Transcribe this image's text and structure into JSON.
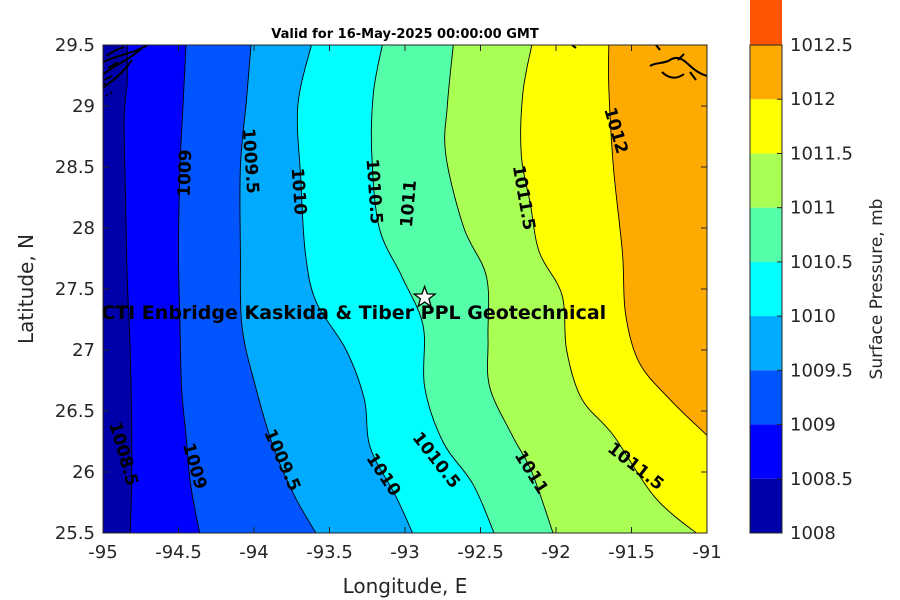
{
  "chart_data": {
    "type": "contour",
    "title": "Valid for 16-May-2025 00:00:00 GMT",
    "xlabel": "Longitude, E",
    "ylabel": "Latitude, N",
    "xlim": [
      -95,
      -91
    ],
    "ylim": [
      25.5,
      29.5
    ],
    "xticks": [
      "-95",
      "-94.5",
      "-94",
      "-93.5",
      "-93",
      "-92.5",
      "-92",
      "-91.5",
      "-91"
    ],
    "yticks": [
      "25.5",
      "26",
      "26.5",
      "27",
      "27.5",
      "28",
      "28.5",
      "29",
      "29.5"
    ],
    "colorbar": {
      "label": "Surface Pressure, mb",
      "ticks": [
        "1008",
        "1008.5",
        "1009",
        "1009.5",
        "1010",
        "1010.5",
        "1011",
        "1011.5",
        "1012",
        "1012.5"
      ],
      "levels": [
        1008,
        1008.5,
        1009,
        1009.5,
        1010,
        1010.5,
        1011,
        1011.5,
        1012,
        1012.5
      ],
      "colors": [
        "#0000AA",
        "#0000FF",
        "#0055FF",
        "#00AAFF",
        "#00FFFF",
        "#55FFAA",
        "#AAFF55",
        "#FFFF00",
        "#FFAA00",
        "#FF5500"
      ]
    },
    "isobars": [
      {
        "level": 1008.5,
        "points": [
          [
            -94.84,
            29.5
          ],
          [
            -94.84,
            29.2
          ],
          [
            -94.86,
            28.9
          ],
          [
            -94.85,
            28.2
          ],
          [
            -94.84,
            27.6
          ],
          [
            -94.82,
            27.0
          ],
          [
            -94.81,
            26.4
          ],
          [
            -94.81,
            25.9
          ],
          [
            -94.82,
            25.5
          ]
        ]
      },
      {
        "level": 1009,
        "points": [
          [
            -94.45,
            29.5
          ],
          [
            -94.47,
            29.0
          ],
          [
            -94.49,
            28.5
          ],
          [
            -94.5,
            27.8
          ],
          [
            -94.49,
            27.2
          ],
          [
            -94.48,
            26.7
          ],
          [
            -94.45,
            26.3
          ],
          [
            -94.42,
            25.9
          ],
          [
            -94.36,
            25.5
          ]
        ]
      },
      {
        "level": 1009.5,
        "points": [
          [
            -94.02,
            29.5
          ],
          [
            -94.05,
            29.05
          ],
          [
            -94.09,
            28.5
          ],
          [
            -94.09,
            27.8
          ],
          [
            -94.08,
            27.2
          ],
          [
            -93.99,
            26.7
          ],
          [
            -93.87,
            26.2
          ],
          [
            -93.73,
            25.8
          ],
          [
            -93.59,
            25.5
          ]
        ]
      },
      {
        "level": 1010,
        "points": [
          [
            -93.62,
            29.5
          ],
          [
            -93.71,
            29.0
          ],
          [
            -93.69,
            28.4
          ],
          [
            -93.66,
            27.8
          ],
          [
            -93.59,
            27.4
          ],
          [
            -93.39,
            27.0
          ],
          [
            -93.27,
            26.6
          ],
          [
            -93.23,
            26.2
          ],
          [
            -93.06,
            25.8
          ],
          [
            -92.95,
            25.5
          ]
        ]
      },
      {
        "level": 1010.5,
        "points": [
          [
            -93.15,
            29.5
          ],
          [
            -93.21,
            29.1
          ],
          [
            -93.22,
            28.6
          ],
          [
            -93.17,
            28.0
          ],
          [
            -93.02,
            27.6
          ],
          [
            -92.88,
            27.2
          ],
          [
            -92.87,
            26.7
          ],
          [
            -92.75,
            26.25
          ],
          [
            -92.55,
            25.9
          ],
          [
            -92.41,
            25.5
          ]
        ]
      },
      {
        "level": 1011,
        "points": [
          [
            -92.68,
            29.5
          ],
          [
            -92.72,
            29.0
          ],
          [
            -92.73,
            28.6
          ],
          [
            -92.61,
            28.0
          ],
          [
            -92.46,
            27.6
          ],
          [
            -92.45,
            27.1
          ],
          [
            -92.44,
            26.7
          ],
          [
            -92.29,
            26.3
          ],
          [
            -92.16,
            26.0
          ],
          [
            -92.02,
            25.5
          ]
        ]
      },
      {
        "level": 1011.5,
        "points": [
          [
            -92.16,
            29.5
          ],
          [
            -92.22,
            29.1
          ],
          [
            -92.23,
            28.6
          ],
          [
            -92.17,
            28.2
          ],
          [
            -92.11,
            27.8
          ],
          [
            -91.96,
            27.45
          ],
          [
            -91.93,
            27.0
          ],
          [
            -91.83,
            26.6
          ],
          [
            -91.62,
            26.3
          ],
          [
            -91.35,
            25.8
          ],
          [
            -91.07,
            25.5
          ],
          [
            -91,
            25.47
          ]
        ]
      },
      {
        "level": 1012,
        "points": [
          [
            -91.65,
            29.5
          ],
          [
            -91.65,
            29.15
          ],
          [
            -91.62,
            28.5
          ],
          [
            -91.56,
            27.8
          ],
          [
            -91.54,
            27.3
          ],
          [
            -91.45,
            26.9
          ],
          [
            -91.25,
            26.6
          ],
          [
            -91,
            26.3
          ]
        ]
      }
    ],
    "contour_labels": [
      {
        "text": "1008.5",
        "x": -94.86,
        "y": 26.15,
        "angle": 74
      },
      {
        "text": "1009",
        "x": -94.39,
        "y": 26.05,
        "angle": 74
      },
      {
        "text": "1009",
        "x": -94.46,
        "y": 28.45,
        "angle": -88
      },
      {
        "text": "1009.5",
        "x": -94.02,
        "y": 28.55,
        "angle": 86
      },
      {
        "text": "1009.5",
        "x": -93.81,
        "y": 26.1,
        "angle": 66
      },
      {
        "text": "1010",
        "x": -93.7,
        "y": 28.3,
        "angle": 86
      },
      {
        "text": "1010",
        "x": -93.14,
        "y": 25.98,
        "angle": 56
      },
      {
        "text": "1010.5",
        "x": -93.2,
        "y": 28.3,
        "angle": 86
      },
      {
        "text": "1010.5",
        "x": -92.79,
        "y": 26.1,
        "angle": 52
      },
      {
        "text": "1011",
        "x": -92.98,
        "y": 28.2,
        "angle": -85
      },
      {
        "text": "1011",
        "x": -92.16,
        "y": 26.0,
        "angle": 58
      },
      {
        "text": "1011.5",
        "x": -92.21,
        "y": 28.25,
        "angle": 80
      },
      {
        "text": "1011.5",
        "x": -91.47,
        "y": 26.05,
        "angle": 38
      },
      {
        "text": "1012",
        "x": -91.6,
        "y": 28.8,
        "angle": 74
      }
    ],
    "annotations": [
      {
        "text": "CTI Enbridge  Kaskida & Tiber PPL Geotechnical",
        "x": -93.34,
        "y": 27.31,
        "marker": "star",
        "marker_x": -92.87,
        "marker_y": 27.43
      }
    ],
    "coastline": "present",
    "grid": false
  }
}
